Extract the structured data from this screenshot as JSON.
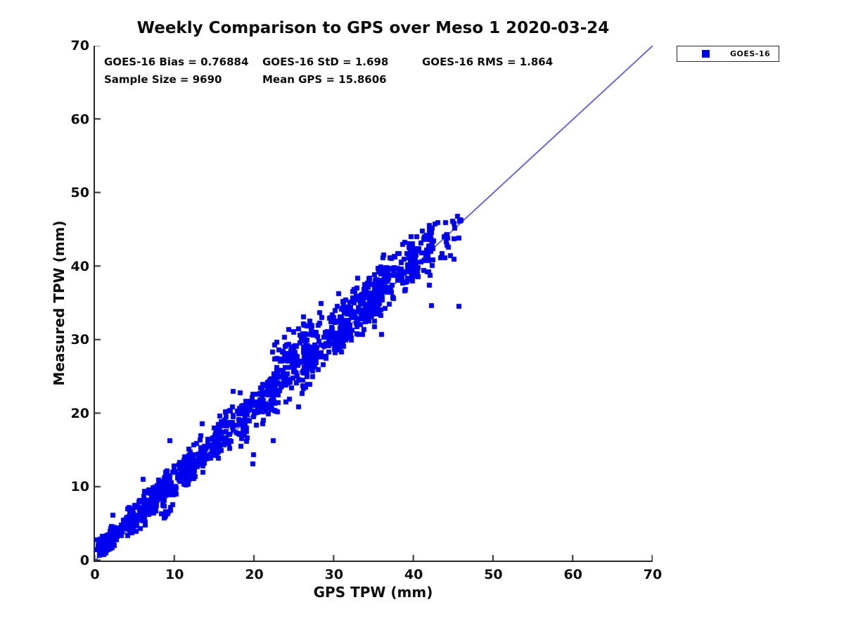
{
  "figure": {
    "background": "#ffffff"
  },
  "chart_data": {
    "type": "scatter",
    "title": "Weekly Comparison to GPS over Meso 1 2020-03-24",
    "xlabel": "GPS TPW (mm)",
    "ylabel": "Measured TPW (mm)",
    "xlim": [
      0,
      70
    ],
    "ylim": [
      0,
      70
    ],
    "xticks": [
      0,
      10,
      20,
      30,
      40,
      50,
      60,
      70
    ],
    "yticks": [
      0,
      10,
      20,
      30,
      40,
      50,
      60,
      70
    ],
    "grid": false,
    "axis_color": "#262626",
    "stats": {
      "bias_label": "GOES-16 Bias = 0.76884",
      "std_label": "GOES-16 StD = 1.698",
      "rms_label": "GOES-16 RMS = 1.864",
      "sample_label": "Sample Size = 9690",
      "mean_label": "Mean GPS = 15.8606"
    },
    "legend": {
      "label": "GOES-16",
      "marker": "square",
      "marker_color": "#0000ee",
      "position": "outside-top-right"
    },
    "reference_line": {
      "from": [
        0,
        0
      ],
      "to": [
        70,
        70
      ],
      "color": "#2323cf",
      "width": 1.3
    },
    "series": [
      {
        "name": "GOES-16",
        "marker": "square",
        "color": "#0000ee",
        "marker_px": 7,
        "sample_size": 9690,
        "x_range": [
          0,
          46
        ],
        "y_range": [
          1.3,
          46.3
        ],
        "point_model": {
          "seed": 20200324,
          "note": "dense 1:1 cloud, y approx x + bias, std per segment",
          "clusters": [
            {
              "x0": 0.2,
              "x1": 2.5,
              "n": 90,
              "bias": 1.4,
              "sy": 0.55
            },
            {
              "x0": 0.5,
              "x1": 5.0,
              "n": 130,
              "bias": 1.0,
              "sy": 0.7
            },
            {
              "x0": 4.0,
              "x1": 8.5,
              "n": 150,
              "bias": 0.9,
              "sy": 0.95
            },
            {
              "x0": 7.0,
              "x1": 12.5,
              "n": 170,
              "bias": 0.9,
              "sy": 1.1
            },
            {
              "x0": 8.3,
              "x1": 9.8,
              "n": 12,
              "bias": -2.6,
              "sy": 0.5
            },
            {
              "x0": 11.0,
              "x1": 16.0,
              "n": 150,
              "bias": 1.0,
              "sy": 1.15
            },
            {
              "x0": 15.0,
              "x1": 19.0,
              "n": 70,
              "bias": 0.9,
              "sy": 1.3
            },
            {
              "x0": 18.0,
              "x1": 23.0,
              "n": 100,
              "bias": 0.7,
              "sy": 1.5
            },
            {
              "x0": 21.5,
              "x1": 28.5,
              "n": 55,
              "bias": 4.3,
              "sy": 1.5
            },
            {
              "x0": 22.0,
              "x1": 27.5,
              "n": 120,
              "bias": 0.9,
              "sy": 1.6
            },
            {
              "x0": 26.0,
              "x1": 32.0,
              "n": 150,
              "bias": 0.8,
              "sy": 1.7
            },
            {
              "x0": 30.0,
              "x1": 36.0,
              "n": 160,
              "bias": 1.2,
              "sy": 1.9
            },
            {
              "x0": 34.0,
              "x1": 40.5,
              "n": 170,
              "bias": 1.1,
              "sy": 1.6
            },
            {
              "x0": 39.5,
              "x1": 42.5,
              "n": 55,
              "bias": 0.6,
              "sy": 1.5
            },
            {
              "x0": 41.5,
              "x1": 46.0,
              "n": 26,
              "bias": 0.4,
              "sy": 1.7
            }
          ],
          "outliers": [
            [
              2.2,
              6.2
            ],
            [
              6.0,
              11.1
            ],
            [
              9.4,
              16.4
            ],
            [
              13.4,
              18.6
            ],
            [
              17.3,
              23.0
            ],
            [
              18.2,
              22.9
            ],
            [
              22.3,
              16.4
            ],
            [
              19.8,
              13.2
            ],
            [
              19.9,
              14.4
            ],
            [
              25.5,
              20.9
            ],
            [
              35.9,
              30.8
            ],
            [
              41.9,
              37.5
            ],
            [
              42.2,
              34.7
            ],
            [
              45.6,
              34.6
            ],
            [
              42.6,
              45.8
            ],
            [
              41.9,
              44.9
            ],
            [
              45.7,
              46.2
            ],
            [
              45.6,
              43.9
            ],
            [
              44.1,
              42.9
            ],
            [
              43.3,
              41.2
            ],
            [
              44.6,
              41.5
            ],
            [
              45.0,
              41.0
            ],
            [
              43.8,
              44.1
            ]
          ]
        }
      }
    ]
  }
}
